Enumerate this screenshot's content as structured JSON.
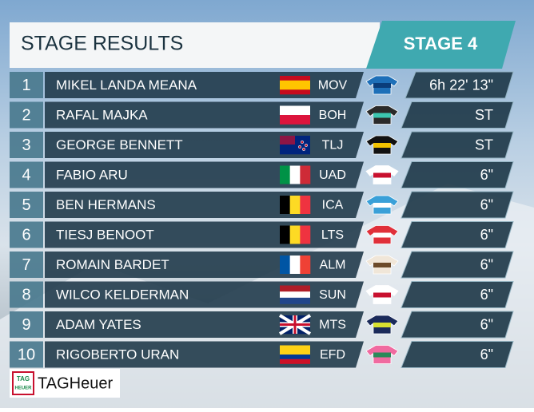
{
  "header": {
    "title": "STAGE RESULTS",
    "stage": "STAGE 4"
  },
  "rows": [
    {
      "rank": 1,
      "name": "MIKEL LANDA MEANA",
      "team": "MOV",
      "time": "6h 22' 13\""
    },
    {
      "rank": 2,
      "name": "RAFAL MAJKA",
      "team": "BOH",
      "time": "ST"
    },
    {
      "rank": 3,
      "name": "GEORGE BENNETT",
      "team": "TLJ",
      "time": "ST"
    },
    {
      "rank": 4,
      "name": "FABIO ARU",
      "team": "UAD",
      "time": "6\""
    },
    {
      "rank": 5,
      "name": "BEN HERMANS",
      "team": "ICA",
      "time": "6\""
    },
    {
      "rank": 6,
      "name": "TIESJ BENOOT",
      "team": "LTS",
      "time": "6\""
    },
    {
      "rank": 7,
      "name": "ROMAIN BARDET",
      "team": "ALM",
      "time": "6\""
    },
    {
      "rank": 8,
      "name": "WILCO KELDERMAN",
      "team": "SUN",
      "time": "6\""
    },
    {
      "rank": 9,
      "name": "ADAM YATES",
      "team": "MTS",
      "time": "6\""
    },
    {
      "rank": 10,
      "name": "RIGOBERTO URAN",
      "team": "EFD",
      "time": "6\""
    }
  ],
  "logo": {
    "badge_top": "TAG",
    "badge_bottom": "HEUER",
    "name": "TAGHeuer"
  }
}
